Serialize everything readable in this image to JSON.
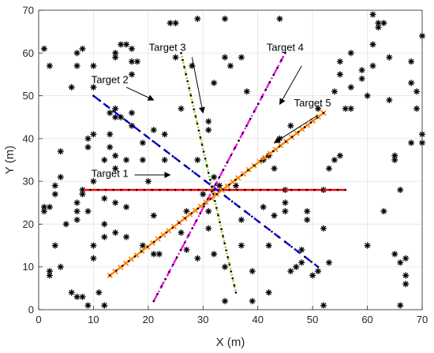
{
  "chart_data": {
    "type": "scatter",
    "title": "",
    "xlabel": "X (m)",
    "ylabel": "Y (m)",
    "xlim": [
      0,
      70
    ],
    "ylim": [
      0,
      70
    ],
    "xticks": [
      0,
      10,
      20,
      30,
      40,
      50,
      60,
      70
    ],
    "yticks": [
      0,
      10,
      20,
      30,
      40,
      50,
      60,
      70
    ],
    "grid": true,
    "marker": "*",
    "marker_color": "#000000",
    "points": [
      [
        1,
        23
      ],
      [
        1,
        24
      ],
      [
        1,
        61
      ],
      [
        2,
        57
      ],
      [
        2,
        24
      ],
      [
        3,
        29
      ],
      [
        3,
        27
      ],
      [
        4,
        31
      ],
      [
        4,
        37
      ],
      [
        2,
        9
      ],
      [
        2,
        8
      ],
      [
        4,
        10
      ],
      [
        3,
        15
      ],
      [
        5,
        20
      ],
      [
        6,
        52
      ],
      [
        7,
        60
      ],
      [
        8,
        61
      ],
      [
        7,
        57
      ],
      [
        6,
        4
      ],
      [
        7,
        3
      ],
      [
        8,
        3
      ],
      [
        9,
        1
      ],
      [
        7,
        23
      ],
      [
        7,
        21
      ],
      [
        7,
        25
      ],
      [
        8,
        28
      ],
      [
        8,
        27
      ],
      [
        9,
        38
      ],
      [
        9,
        40
      ],
      [
        9,
        23
      ],
      [
        10,
        57
      ],
      [
        10,
        52
      ],
      [
        10,
        41
      ],
      [
        10,
        30
      ],
      [
        10,
        15
      ],
      [
        10,
        12
      ],
      [
        11,
        4
      ],
      [
        12,
        1
      ],
      [
        12,
        35
      ],
      [
        12,
        26
      ],
      [
        12,
        20
      ],
      [
        13,
        46
      ],
      [
        13,
        41
      ],
      [
        13,
        38
      ],
      [
        12,
        17
      ],
      [
        14,
        60
      ],
      [
        14,
        59
      ],
      [
        14,
        47
      ],
      [
        14,
        45
      ],
      [
        14,
        36
      ],
      [
        14,
        33
      ],
      [
        14,
        25
      ],
      [
        14,
        18
      ],
      [
        15,
        62
      ],
      [
        15,
        45
      ],
      [
        16,
        35
      ],
      [
        16,
        24
      ],
      [
        16,
        17
      ],
      [
        16,
        62
      ],
      [
        17,
        61
      ],
      [
        17,
        58
      ],
      [
        17,
        55
      ],
      [
        17,
        46
      ],
      [
        17,
        43
      ],
      [
        18,
        58
      ],
      [
        19,
        39
      ],
      [
        19,
        35
      ],
      [
        19,
        15
      ],
      [
        20,
        30
      ],
      [
        21,
        42
      ],
      [
        21,
        22
      ],
      [
        21,
        13
      ],
      [
        22,
        13
      ],
      [
        23,
        41
      ],
      [
        23,
        35
      ],
      [
        24,
        67
      ],
      [
        25,
        67
      ],
      [
        25,
        59
      ],
      [
        26,
        47
      ],
      [
        26,
        18
      ],
      [
        27,
        23
      ],
      [
        27,
        14
      ],
      [
        28,
        57
      ],
      [
        29,
        12
      ],
      [
        29,
        68
      ],
      [
        29,
        35
      ],
      [
        30,
        27
      ],
      [
        31,
        44
      ],
      [
        31,
        42
      ],
      [
        31,
        23
      ],
      [
        31,
        19
      ],
      [
        32,
        53
      ],
      [
        32,
        13
      ],
      [
        32,
        31
      ],
      [
        33,
        29
      ],
      [
        34,
        68
      ],
      [
        34,
        59
      ],
      [
        34,
        10
      ],
      [
        34,
        2
      ],
      [
        35,
        57
      ],
      [
        36,
        29
      ],
      [
        37,
        59
      ],
      [
        37,
        21
      ],
      [
        37,
        15
      ],
      [
        38,
        51
      ],
      [
        39,
        9
      ],
      [
        39,
        2
      ],
      [
        41,
        35
      ],
      [
        41,
        24
      ],
      [
        42,
        36
      ],
      [
        42,
        15
      ],
      [
        42,
        4
      ],
      [
        43,
        22
      ],
      [
        43,
        33
      ],
      [
        44,
        68
      ],
      [
        44,
        40
      ],
      [
        45,
        23
      ],
      [
        45,
        28
      ],
      [
        45,
        25
      ],
      [
        46,
        9
      ],
      [
        46,
        43
      ],
      [
        47,
        10
      ],
      [
        48,
        14
      ],
      [
        48,
        11
      ],
      [
        49,
        23
      ],
      [
        49,
        21
      ],
      [
        50,
        8
      ],
      [
        51,
        9
      ],
      [
        51,
        47
      ],
      [
        52,
        19
      ],
      [
        52,
        1
      ],
      [
        52,
        28
      ],
      [
        53,
        11
      ],
      [
        53,
        33
      ],
      [
        54,
        51
      ],
      [
        54,
        35
      ],
      [
        55,
        36
      ],
      [
        55,
        55
      ],
      [
        55,
        58
      ],
      [
        56,
        47
      ],
      [
        57,
        60
      ],
      [
        57,
        47
      ],
      [
        57,
        52
      ],
      [
        59,
        56
      ],
      [
        59,
        54
      ],
      [
        60,
        50
      ],
      [
        60,
        15
      ],
      [
        61,
        62
      ],
      [
        61,
        57
      ],
      [
        61,
        69
      ],
      [
        62,
        67
      ],
      [
        62,
        66
      ],
      [
        63,
        67
      ],
      [
        63,
        23
      ],
      [
        64,
        49
      ],
      [
        64,
        59
      ],
      [
        65,
        36
      ],
      [
        65,
        35
      ],
      [
        65,
        13
      ],
      [
        66,
        1
      ],
      [
        66,
        28
      ],
      [
        66,
        11
      ],
      [
        67,
        12
      ],
      [
        67,
        8
      ],
      [
        67,
        6
      ],
      [
        68,
        58
      ],
      [
        68,
        53
      ],
      [
        69,
        51
      ],
      [
        70,
        41
      ],
      [
        69,
        47
      ],
      [
        68,
        39
      ],
      [
        70,
        39
      ],
      [
        70,
        64
      ]
    ],
    "targets": [
      {
        "name": "Target 1",
        "color": "#ff0000",
        "dash": "solid",
        "true_path": [
          [
            8,
            28
          ],
          [
            56,
            28
          ]
        ],
        "label_at": [
          13,
          31
        ],
        "arrow_from": [
          17.5,
          31.5
        ],
        "arrow_to": [
          24,
          31.5
        ]
      },
      {
        "name": "Target 2",
        "color": "#0000ff",
        "dash": "long",
        "true_path": [
          [
            10,
            50
          ],
          [
            51,
            10
          ]
        ],
        "label_at": [
          13,
          53
        ],
        "arrow_from": [
          16,
          52
        ],
        "arrow_to": [
          21,
          49
        ]
      },
      {
        "name": "Target 3",
        "color": "#7cc400",
        "dash": "dotted",
        "true_path": [
          [
            26,
            60
          ],
          [
            36,
            4
          ]
        ],
        "label_at": [
          23.5,
          60.5
        ],
        "arrow_from": [
          28,
          59
        ],
        "arrow_to": [
          30,
          46
        ]
      },
      {
        "name": "Target 4",
        "color": "#ff00ff",
        "dash": "dashdot",
        "true_path": [
          [
            21,
            2
          ],
          [
            45,
            60
          ]
        ],
        "label_at": [
          45,
          60.5
        ],
        "arrow_from": [
          48,
          57
        ],
        "arrow_to": [
          44,
          48
        ]
      },
      {
        "name": "Target 5",
        "color": "#ff8000",
        "dash": "crosses",
        "true_path": [
          [
            13,
            8
          ],
          [
            52,
            46
          ]
        ],
        "label_at": [
          50,
          47.5
        ],
        "arrow_from": [
          51,
          45.5
        ],
        "arrow_to": [
          43,
          39
        ]
      }
    ]
  }
}
